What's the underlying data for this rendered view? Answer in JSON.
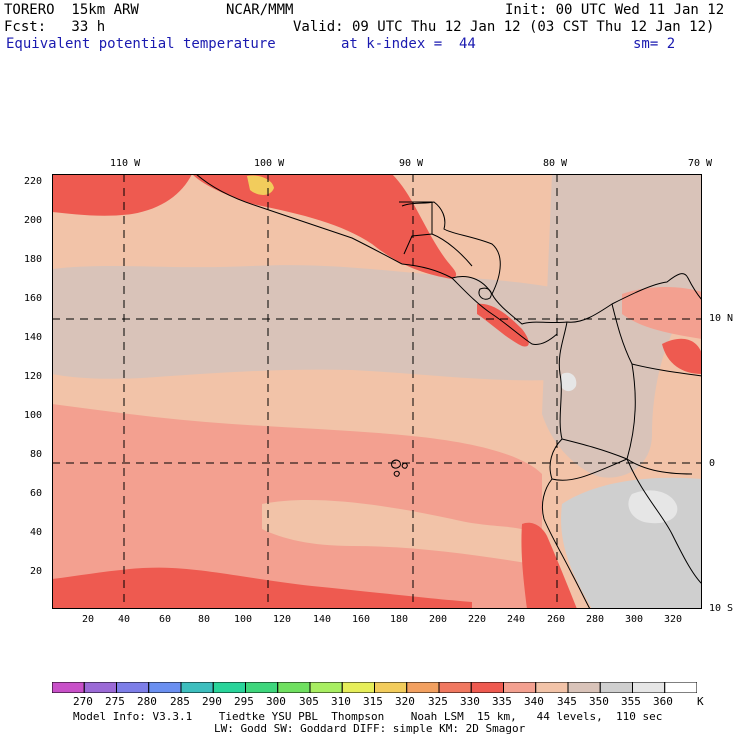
{
  "header": {
    "model": "TORERO  15km ARW",
    "center": "NCAR/MMM",
    "init": "Init: 00 UTC Wed 11 Jan 12",
    "fcst": "Fcst:   33 h",
    "valid": "Valid: 09 UTC Thu 12 Jan 12 (03 CST Thu 12 Jan 12)",
    "field": "Equivalent potential temperature",
    "level": "at k-index =  44",
    "smooth": "sm= 2"
  },
  "map": {
    "lon_labels": [
      "110 W",
      "100 W",
      "90 W",
      "80 W",
      "70 W"
    ],
    "lat_labels": [
      "10 N",
      "0",
      "10 S"
    ],
    "y_ticks": [
      "220",
      "200",
      "180",
      "160",
      "140",
      "120",
      "100",
      "80",
      "60",
      "40",
      "20"
    ],
    "x_ticks": [
      "20",
      "40",
      "60",
      "80",
      "100",
      "120",
      "140",
      "160",
      "180",
      "200",
      "220",
      "240",
      "260",
      "280",
      "300",
      "320"
    ]
  },
  "colorbar": {
    "levels": [
      "270",
      "275",
      "280",
      "285",
      "290",
      "295",
      "300",
      "305",
      "310",
      "315",
      "320",
      "325",
      "330",
      "335",
      "340",
      "345",
      "350",
      "355",
      "360"
    ],
    "unit": "K",
    "colors": [
      "#c850c8",
      "#9b6ad6",
      "#7d7ee8",
      "#6a8ff0",
      "#3dbebe",
      "#29d49a",
      "#3ed67c",
      "#6fe060",
      "#a8ee62",
      "#e6ee5a",
      "#f2cc5c",
      "#f2a060",
      "#f07860",
      "#ee5a50",
      "#f3a090",
      "#f2c3a8",
      "#d9c3b9",
      "#cfcfcf",
      "#e6e6e6",
      "#ffffff"
    ]
  },
  "info": {
    "line1": "Model Info: V3.3.1    Tiedtke YSU PBL  Thompson    Noah LSM  15 km,   44 levels,  110 sec",
    "line2": "LW: Godd SW: Goddard DIFF: simple KM: 2D Smagor"
  }
}
